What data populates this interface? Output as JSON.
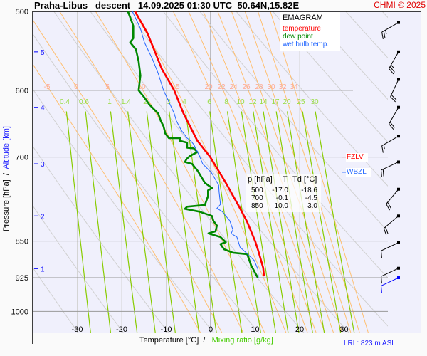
{
  "header": {
    "title": "Praha-Libus   descent   14.09.2025 01:30 UTC  50.64N,15.82E",
    "copyright": "CHMI © 2025"
  },
  "chart_data": {
    "type": "line",
    "title": "EMAGRAM",
    "xlabel": "Temperature [°C]",
    "xlabel_sep": "/",
    "xlabel2": "Mixing ratio [g/kg]",
    "ylabel": "Pressure [hPa]",
    "ylabel_sep": "/",
    "ylabel2": "Altitude [km]",
    "xlim": [
      -40,
      40
    ],
    "ylim": [
      1051,
      500
    ],
    "x_ticks": [
      "-30",
      "-20",
      "-10",
      "0",
      "10",
      "20",
      "30"
    ],
    "x_tick_values": [
      -30,
      -20,
      -10,
      0,
      10,
      20,
      30
    ],
    "p_ticks": [
      "500",
      "600",
      "700",
      "850",
      "925",
      "1000"
    ],
    "p_tick_values": [
      500,
      600,
      700,
      850,
      925,
      1000
    ],
    "alt_ticks": [
      {
        "label": "5",
        "p": 549
      },
      {
        "label": "4",
        "p": 624
      },
      {
        "label": "3",
        "p": 711
      },
      {
        "label": "2",
        "p": 802
      },
      {
        "label": "1",
        "p": 906
      }
    ],
    "legend": [
      {
        "label": "temperature",
        "color": "#ff0000"
      },
      {
        "label": "dew point",
        "color": "#008800"
      },
      {
        "label": "wet bulb temp.",
        "color": "#2266ff"
      }
    ],
    "series": [
      {
        "name": "temperature",
        "color": "#ff0000",
        "points": [
          [
            500,
            -17.0
          ],
          [
            526,
            -14.2
          ],
          [
            552,
            -12.3
          ],
          [
            571,
            -11.0
          ],
          [
            600,
            -8.2
          ],
          [
            633,
            -6.1
          ],
          [
            674,
            -3.0
          ],
          [
            700,
            -0.1
          ],
          [
            743,
            3.4
          ],
          [
            788,
            6.6
          ],
          [
            813,
            8.2
          ],
          [
            850,
            10.0
          ],
          [
            869,
            10.7
          ],
          [
            904,
            11.8
          ],
          [
            922,
            12.0
          ]
        ]
      },
      {
        "name": "dew point",
        "color": "#008800",
        "points": [
          [
            500,
            -18.6
          ],
          [
            517,
            -17.4
          ],
          [
            532,
            -17.4
          ],
          [
            537,
            -18.1
          ],
          [
            546,
            -16.8
          ],
          [
            561,
            -16.2
          ],
          [
            580,
            -15.8
          ],
          [
            600,
            -16.2
          ],
          [
            610,
            -14.9
          ],
          [
            620,
            -13.8
          ],
          [
            633,
            -11.8
          ],
          [
            644,
            -11.2
          ],
          [
            652,
            -10.6
          ],
          [
            663,
            -10.2
          ],
          [
            670,
            -9.4
          ],
          [
            670,
            -6.9
          ],
          [
            674,
            -7.0
          ],
          [
            677,
            -5.3
          ],
          [
            685,
            -5.3
          ],
          [
            686,
            -3.8
          ],
          [
            692,
            -3.0
          ],
          [
            698,
            -4.6
          ],
          [
            703,
            -5.4
          ],
          [
            708,
            -5.8
          ],
          [
            711,
            -4.2
          ],
          [
            723,
            -2.9
          ],
          [
            743,
            -1.3
          ],
          [
            747,
            -0.6
          ],
          [
            752,
            0.3
          ],
          [
            756,
            -0.6
          ],
          [
            766,
            -0.6
          ],
          [
            782,
            -1.3
          ],
          [
            785,
            -5.3
          ],
          [
            789,
            -5.8
          ],
          [
            794,
            -2.6
          ],
          [
            802,
            0.3
          ],
          [
            811,
            0.6
          ],
          [
            820,
            1.4
          ],
          [
            831,
            1.1
          ],
          [
            835,
            -0.5
          ],
          [
            842,
            2.2
          ],
          [
            852,
            3.4
          ],
          [
            856,
            2.2
          ],
          [
            866,
            3.0
          ],
          [
            873,
            5.0
          ],
          [
            876,
            8.2
          ],
          [
            899,
            9.1
          ],
          [
            913,
            9.9
          ],
          [
            925,
            10.6
          ]
        ]
      },
      {
        "name": "wet bulb temp.",
        "color": "#2266ff",
        "points": [
          [
            500,
            -17.6
          ],
          [
            520,
            -15.8
          ],
          [
            537,
            -14.9
          ],
          [
            558,
            -13.1
          ],
          [
            577,
            -11.8
          ],
          [
            600,
            -10.6
          ],
          [
            616,
            -9.4
          ],
          [
            633,
            -8.2
          ],
          [
            644,
            -7.7
          ],
          [
            658,
            -6.6
          ],
          [
            670,
            -5.3
          ],
          [
            674,
            -4.5
          ],
          [
            680,
            -3.8
          ],
          [
            697,
            -2.6
          ],
          [
            711,
            -1.8
          ],
          [
            726,
            0.2
          ],
          [
            747,
            1.8
          ],
          [
            759,
            1.9
          ],
          [
            781,
            2.2
          ],
          [
            788,
            1.4
          ],
          [
            794,
            2.6
          ],
          [
            811,
            4.3
          ],
          [
            828,
            5.0
          ],
          [
            835,
            4.6
          ],
          [
            842,
            5.9
          ],
          [
            862,
            6.6
          ],
          [
            875,
            8.2
          ],
          [
            889,
            9.8
          ],
          [
            907,
            10.6
          ],
          [
            925,
            10.7
          ]
        ]
      }
    ],
    "moist_adiabats": [
      "-5",
      "0",
      "5",
      "10",
      "15",
      "20",
      "22",
      "24",
      "26",
      "28",
      "30",
      "32",
      "34"
    ],
    "mixing_ratios": [
      "0.4",
      "0.6",
      "1",
      "1.4",
      "2",
      "3",
      "4",
      "6",
      "8",
      "10",
      "12",
      "14",
      "17",
      "20",
      "25",
      "30"
    ],
    "dry_adiabats_K": [
      240,
      250,
      260,
      270,
      280,
      290,
      300,
      310,
      320,
      330,
      340,
      350,
      360,
      370,
      380,
      390,
      400,
      410,
      420
    ],
    "summary_table": {
      "headers": [
        "p [hPa]",
        "T",
        "Td [°C]"
      ],
      "rows": [
        [
          "500",
          "-17.0",
          "-18.6"
        ],
        [
          "700",
          "-0.1",
          "-4.5"
        ],
        [
          "850",
          "10.0",
          "3.0"
        ]
      ]
    },
    "levels": {
      "fzlv": {
        "label": "FZLV",
        "p": 700,
        "color": "#ff0000"
      },
      "wbzl": {
        "label": "WBZL",
        "p": 725,
        "color": "#2266ff"
      }
    },
    "wind": [
      {
        "p": 513,
        "dir": 240,
        "speed": 25,
        "color": "#000000"
      },
      {
        "p": 549,
        "dir": 210,
        "speed": 25,
        "color": "#000000"
      },
      {
        "p": 585,
        "dir": 205,
        "speed": 20,
        "color": "#000000"
      },
      {
        "p": 624,
        "dir": 210,
        "speed": 20,
        "color": "#000000"
      },
      {
        "p": 667,
        "dir": 240,
        "speed": 15,
        "color": "#000000"
      },
      {
        "p": 708,
        "dir": 245,
        "speed": 20,
        "color": "#000000"
      },
      {
        "p": 754,
        "dir": 220,
        "speed": 20,
        "color": "#000000"
      },
      {
        "p": 802,
        "dir": 230,
        "speed": 20,
        "color": "#000000"
      },
      {
        "p": 853,
        "dir": 245,
        "speed": 10,
        "color": "#000000"
      },
      {
        "p": 905,
        "dir": 245,
        "speed": 10,
        "color": "#000000"
      },
      {
        "p": 925,
        "dir": 245,
        "speed": 10,
        "color": "#0000ff"
      }
    ]
  },
  "footer": {
    "lrl": "LRL: 823 m ASL"
  }
}
